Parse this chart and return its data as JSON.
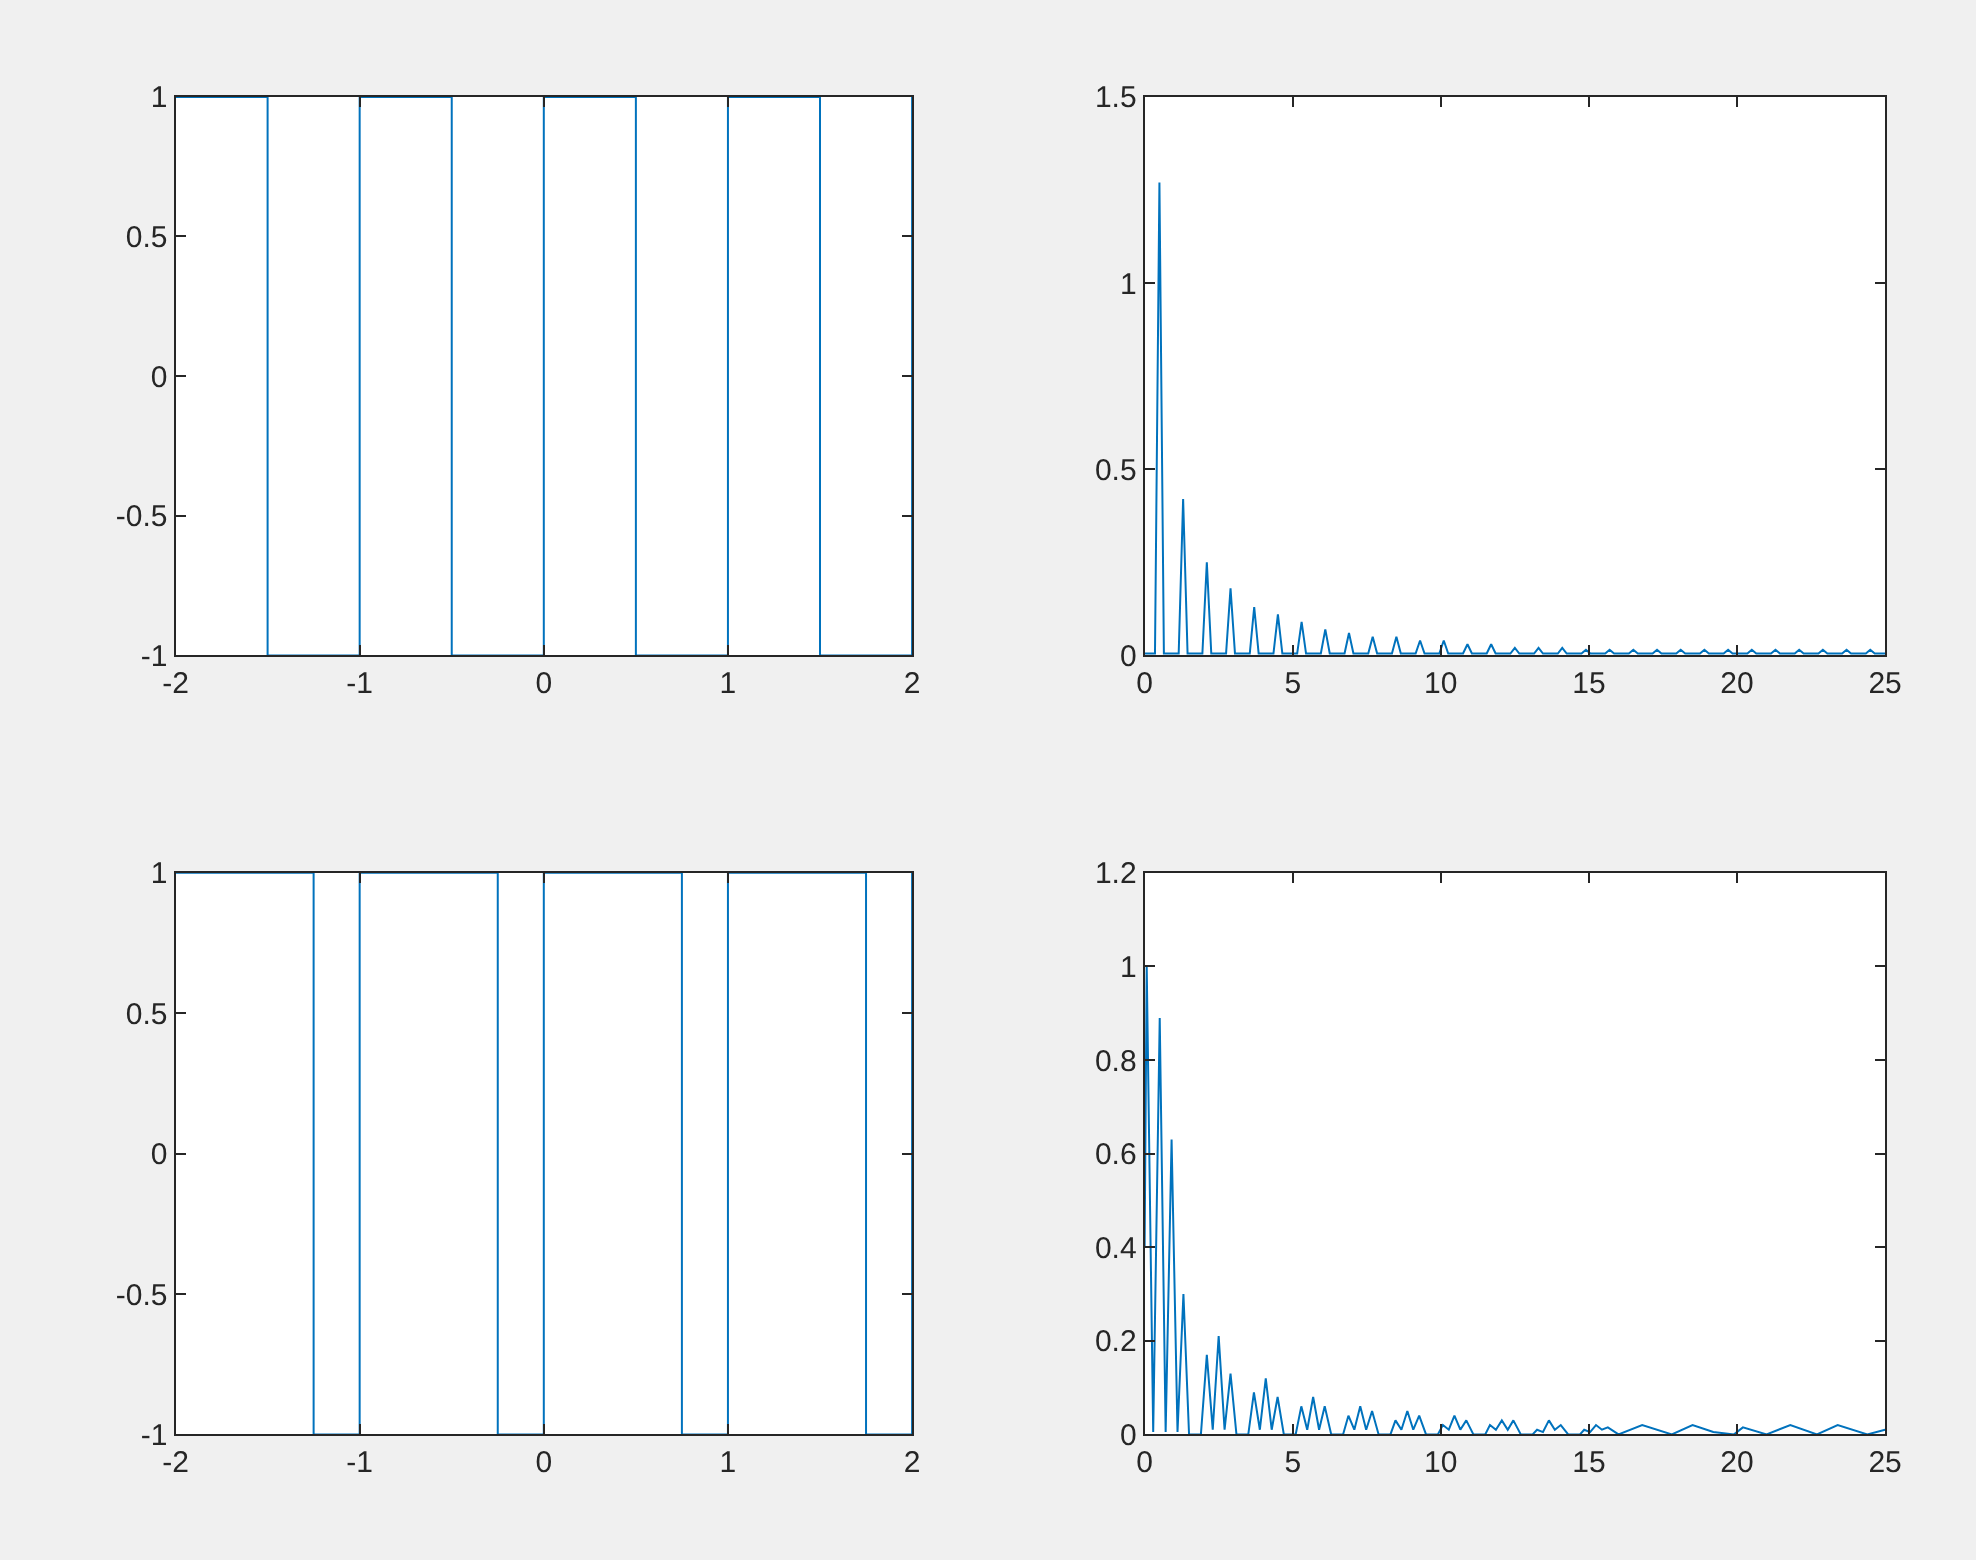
{
  "chart_data": [
    {
      "type": "step",
      "color": "#0072bd",
      "x": [
        -2,
        -1.5,
        -1,
        -0.5,
        0,
        0.5,
        1,
        1.5,
        2
      ],
      "values": [
        1,
        -1,
        1,
        -1,
        1,
        -1,
        1,
        -1,
        1
      ],
      "xlim": [
        -2,
        2
      ],
      "xticks": [
        -2,
        -1,
        0,
        1,
        2
      ],
      "ylim": [
        -1,
        1
      ],
      "yticks": [
        -1,
        -0.5,
        0,
        0.5,
        1
      ]
    },
    {
      "type": "line",
      "color": "#0072bd",
      "x": [
        0,
        0.35,
        0.5,
        0.65,
        1.15,
        1.3,
        1.45,
        1.95,
        2.1,
        2.25,
        2.75,
        2.9,
        3.05,
        3.55,
        3.7,
        3.85,
        4.35,
        4.5,
        4.65,
        5.15,
        5.3,
        5.45,
        5.95,
        6.1,
        6.25,
        6.75,
        6.9,
        7.05,
        7.55,
        7.7,
        7.85,
        8.35,
        8.5,
        8.65,
        9.15,
        9.3,
        9.45,
        9.95,
        10.1,
        10.25,
        10.75,
        10.9,
        11.05,
        11.55,
        11.7,
        11.85,
        12.35,
        12.5,
        12.65,
        13.15,
        13.3,
        13.45,
        13.95,
        14.1,
        14.25,
        14.75,
        14.9,
        15.05,
        15.55,
        15.7,
        15.85,
        16.35,
        16.5,
        16.65,
        17.15,
        17.3,
        17.45,
        17.95,
        18.1,
        18.25,
        18.75,
        18.9,
        19.05,
        19.55,
        19.7,
        19.85,
        20.35,
        20.5,
        20.65,
        21.15,
        21.3,
        21.45,
        21.95,
        22.1,
        22.25,
        22.75,
        22.9,
        23.05,
        23.55,
        23.7,
        23.85,
        24.35,
        24.5,
        24.65,
        25
      ],
      "values": [
        0.005,
        0.005,
        1.27,
        0.005,
        0.005,
        0.42,
        0.005,
        0.005,
        0.25,
        0.005,
        0.005,
        0.18,
        0.005,
        0.005,
        0.13,
        0.005,
        0.005,
        0.11,
        0.005,
        0.005,
        0.09,
        0.005,
        0.005,
        0.07,
        0.005,
        0.005,
        0.06,
        0.005,
        0.005,
        0.05,
        0.005,
        0.005,
        0.05,
        0.005,
        0.005,
        0.04,
        0.005,
        0.005,
        0.04,
        0.005,
        0.005,
        0.03,
        0.005,
        0.005,
        0.03,
        0.005,
        0.005,
        0.02,
        0.005,
        0.005,
        0.02,
        0.005,
        0.005,
        0.02,
        0.005,
        0.005,
        0.015,
        0.005,
        0.005,
        0.015,
        0.005,
        0.005,
        0.015,
        0.005,
        0.005,
        0.015,
        0.005,
        0.005,
        0.015,
        0.005,
        0.005,
        0.015,
        0.005,
        0.005,
        0.015,
        0.005,
        0.005,
        0.015,
        0.005,
        0.005,
        0.015,
        0.005,
        0.005,
        0.015,
        0.005,
        0.005,
        0.015,
        0.005,
        0.005,
        0.015,
        0.005,
        0.005,
        0.015,
        0.005,
        0.005
      ],
      "xlim": [
        0,
        25
      ],
      "xticks": [
        0,
        5,
        10,
        15,
        20,
        25
      ],
      "ylim": [
        0,
        1.5
      ],
      "yticks": [
        0,
        0.5,
        1,
        1.5
      ]
    },
    {
      "type": "step",
      "color": "#0072bd",
      "x": [
        -2,
        -1.25,
        -1,
        -0.25,
        0,
        0.75,
        1,
        1.75,
        2
      ],
      "values": [
        1,
        -1,
        1,
        -1,
        1,
        -1,
        1,
        -1,
        1
      ],
      "xlim": [
        -2,
        2
      ],
      "xticks": [
        -2,
        -1,
        0,
        1,
        2
      ],
      "ylim": [
        -1,
        1
      ],
      "yticks": [
        -1,
        -0.5,
        0,
        0.5,
        1
      ]
    },
    {
      "type": "line",
      "color": "#0072bd",
      "x": [
        0,
        0.07,
        0.29,
        0.51,
        0.71,
        0.91,
        1.11,
        1.31,
        1.5,
        1.9,
        2.1,
        2.3,
        2.5,
        2.7,
        2.9,
        3.1,
        3.5,
        3.69,
        3.89,
        4.09,
        4.29,
        4.49,
        4.7,
        5.1,
        5.29,
        5.49,
        5.69,
        5.89,
        6.08,
        6.3,
        6.7,
        6.88,
        7.08,
        7.28,
        7.48,
        7.68,
        7.9,
        8.3,
        8.47,
        8.67,
        8.87,
        9.07,
        9.27,
        9.5,
        9.9,
        10.07,
        10.27,
        10.46,
        10.66,
        10.86,
        11.1,
        11.5,
        11.66,
        11.86,
        12.06,
        12.26,
        12.45,
        12.7,
        13.1,
        13.25,
        13.45,
        13.65,
        13.85,
        14.05,
        14.3,
        14.7,
        14.84,
        15.04,
        15.24,
        15.44,
        15.64,
        16.0,
        16.8,
        17.8,
        18.5,
        19.2,
        19.9,
        20.2,
        21.0,
        21.8,
        22.7,
        23.4,
        24.4,
        25
      ],
      "values": [
        0.4,
        1.0,
        0.005,
        0.89,
        0.005,
        0.63,
        0.005,
        0.3,
        0,
        0,
        0.17,
        0.01,
        0.21,
        0.01,
        0.13,
        0,
        0,
        0.09,
        0.01,
        0.12,
        0.01,
        0.08,
        0,
        0,
        0.06,
        0.01,
        0.08,
        0.01,
        0.06,
        0,
        0,
        0.04,
        0.01,
        0.06,
        0.01,
        0.05,
        0,
        0,
        0.03,
        0.01,
        0.05,
        0.01,
        0.04,
        0,
        0,
        0.02,
        0.01,
        0.04,
        0.01,
        0.03,
        0,
        0,
        0.02,
        0.01,
        0.03,
        0.01,
        0.03,
        0,
        0,
        0.01,
        0.005,
        0.03,
        0.01,
        0.02,
        0,
        0,
        0.01,
        0.005,
        0.02,
        0.01,
        0.015,
        0,
        0.02,
        0,
        0.02,
        0.005,
        0,
        0.015,
        0,
        0.02,
        0,
        0.02,
        0,
        0.01
      ],
      "xlim": [
        0,
        25
      ],
      "xticks": [
        0,
        5,
        10,
        15,
        20,
        25
      ],
      "ylim": [
        0,
        1.2
      ],
      "yticks": [
        0,
        0.2,
        0.4,
        0.6,
        0.8,
        1,
        1.2
      ]
    }
  ]
}
